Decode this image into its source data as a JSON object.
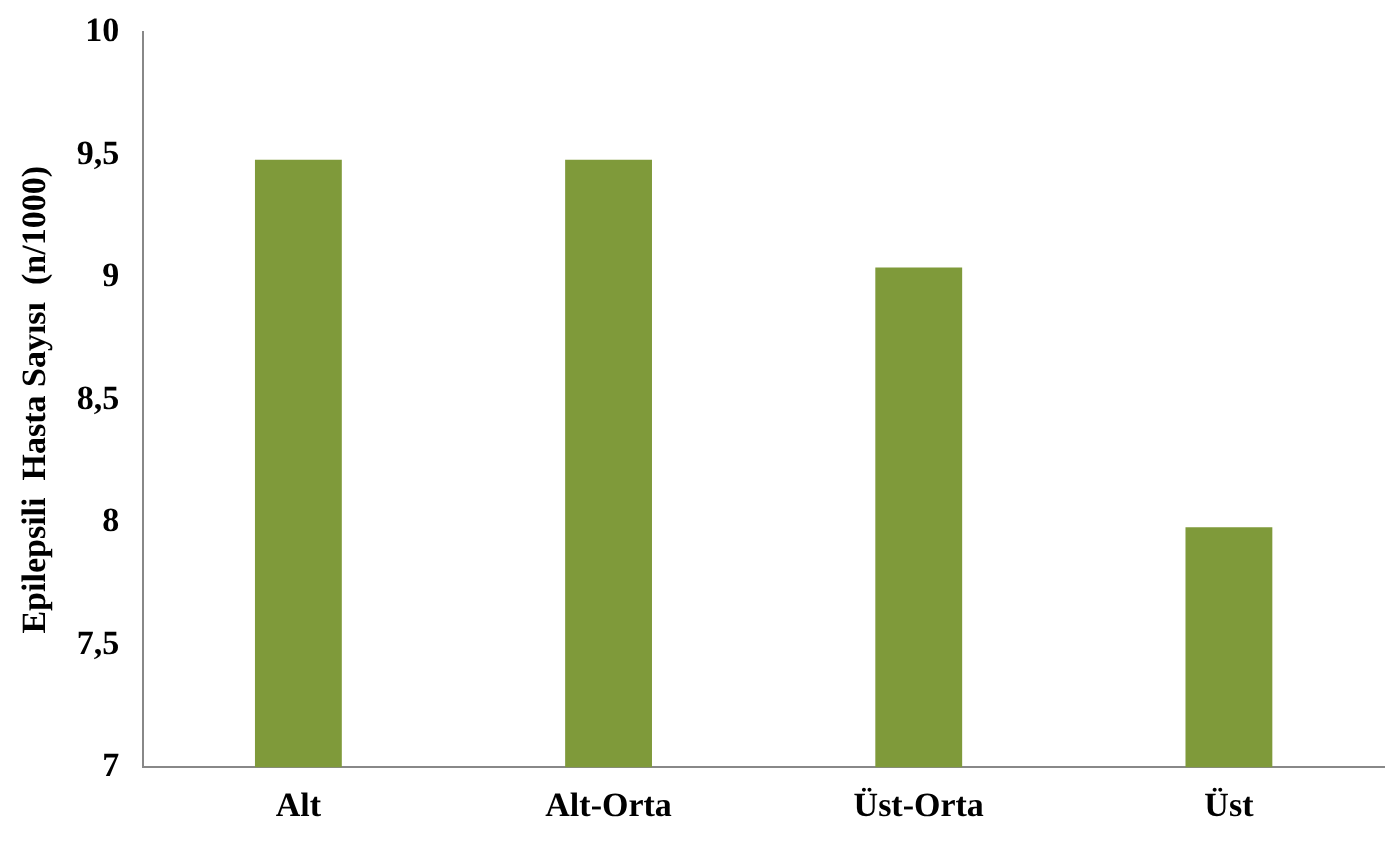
{
  "chart_data": {
    "type": "bar",
    "ylabel": "Epilepsili  Hasta Sayısı  (n/1000)",
    "categories": [
      "Alt",
      "Alt-Orta",
      "Üst-Orta",
      "Üst"
    ],
    "values": [
      9.48,
      9.48,
      9.04,
      7.98
    ],
    "color": "#7f9a3a",
    "ylim": [
      7,
      10
    ],
    "yticks": [
      7,
      {
        "value": 7.5,
        "label": "7,5"
      },
      8,
      {
        "value": 8.5,
        "label": "8,5"
      },
      9,
      {
        "value": 9.5,
        "label": "9,5"
      },
      10
    ],
    "grid": false,
    "legend": false
  }
}
